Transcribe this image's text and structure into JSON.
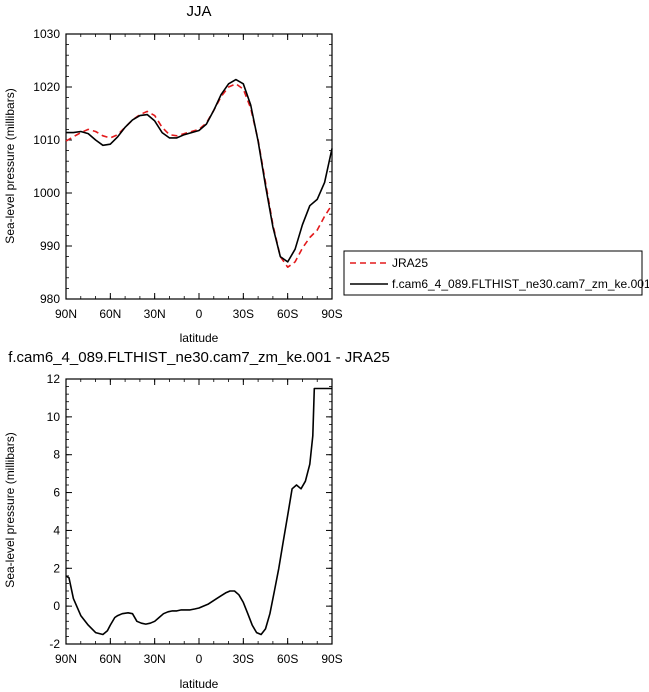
{
  "chart_data": [
    {
      "type": "line",
      "title": "JJA",
      "xlabel": "latitude",
      "ylabel": "Sea-level pressure (millibars)",
      "xlim": [
        90,
        -90
      ],
      "ylim": [
        980,
        1030
      ],
      "x_ticks": [
        90,
        60,
        30,
        0,
        -30,
        -60,
        -90
      ],
      "x_tick_labels": [
        "90N",
        "60N",
        "30N",
        "0",
        "30S",
        "60S",
        "90S"
      ],
      "y_ticks": [
        980,
        990,
        1000,
        1010,
        1020,
        1030
      ],
      "y_tick_labels": [
        "980",
        "990",
        "1000",
        "1010",
        "1020",
        "1030"
      ],
      "grid": false,
      "legend": "right",
      "series": [
        {
          "name": "JRA25",
          "color": "#e31a1c",
          "dash": "dashed",
          "x": [
            90,
            85,
            80,
            75,
            70,
            65,
            60,
            55,
            50,
            45,
            40,
            35,
            30,
            25,
            20,
            15,
            10,
            5,
            0,
            -5,
            -10,
            -15,
            -20,
            -25,
            -30,
            -35,
            -40,
            -45,
            -50,
            -55,
            -60,
            -65,
            -70,
            -75,
            -80,
            -85,
            -90
          ],
          "values": [
            1009.8,
            1010.6,
            1011.4,
            1012.0,
            1011.6,
            1010.8,
            1010.4,
            1011.0,
            1012.4,
            1013.8,
            1014.8,
            1015.4,
            1014.6,
            1012.4,
            1011.0,
            1010.8,
            1011.2,
            1011.6,
            1012.0,
            1013.2,
            1015.6,
            1018.2,
            1020.0,
            1020.6,
            1019.6,
            1016.0,
            1010.0,
            1002.0,
            994.0,
            988.0,
            986.0,
            987.0,
            989.6,
            991.6,
            993.0,
            995.6,
            997.8
          ]
        },
        {
          "name": "f.cam6_4_089.FLTHIST_ne30.cam7_zm_ke.001",
          "color": "#000000",
          "dash": "solid",
          "x": [
            90,
            85,
            80,
            75,
            70,
            65,
            60,
            55,
            50,
            45,
            40,
            35,
            30,
            25,
            20,
            15,
            10,
            5,
            0,
            -5,
            -10,
            -15,
            -20,
            -25,
            -30,
            -35,
            -40,
            -45,
            -50,
            -55,
            -60,
            -65,
            -70,
            -75,
            -80,
            -85,
            -90
          ],
          "values": [
            1011.4,
            1011.4,
            1011.6,
            1011.2,
            1010.0,
            1009.0,
            1009.2,
            1010.6,
            1012.4,
            1013.8,
            1014.6,
            1014.8,
            1013.6,
            1011.4,
            1010.4,
            1010.4,
            1011.0,
            1011.4,
            1011.8,
            1013.0,
            1015.6,
            1018.6,
            1020.6,
            1021.4,
            1020.6,
            1016.6,
            1009.8,
            1001.4,
            993.6,
            988.0,
            987.0,
            989.4,
            994.0,
            997.6,
            998.8,
            1002.0,
            1008.4
          ]
        }
      ]
    },
    {
      "type": "line",
      "title": "f.cam6_4_089.FLTHIST_ne30.cam7_zm_ke.001 - JRA25",
      "xlabel": "latitude",
      "ylabel": "Sea-level pressure (millibars)",
      "xlim": [
        90,
        -90
      ],
      "ylim": [
        -2,
        12
      ],
      "x_ticks": [
        90,
        60,
        30,
        0,
        -30,
        -60,
        -90
      ],
      "x_tick_labels": [
        "90N",
        "60N",
        "30N",
        "0",
        "30S",
        "60S",
        "90S"
      ],
      "y_ticks": [
        -2,
        0,
        2,
        4,
        6,
        8,
        10,
        12
      ],
      "y_tick_labels": [
        "-2",
        "0",
        "2",
        "4",
        "6",
        "8",
        "10",
        "12"
      ],
      "grid": false,
      "series": [
        {
          "color": "#000000",
          "dash": "solid",
          "x": [
            90,
            88,
            85,
            80,
            75,
            70,
            65,
            62,
            60,
            57,
            55,
            52,
            48,
            45,
            42,
            39,
            36,
            33,
            30,
            27,
            24,
            21,
            18,
            15,
            12,
            9,
            6,
            3,
            0,
            -3,
            -6,
            -9,
            -12,
            -15,
            -18,
            -21,
            -24,
            -27,
            -30,
            -33,
            -36,
            -39,
            -42,
            -45,
            -48,
            -51,
            -54,
            -57,
            -60,
            -63,
            -66,
            -69,
            -72,
            -75,
            -77,
            -78,
            -80,
            -82,
            -84,
            -86,
            -88,
            -90
          ],
          "values": [
            1.6,
            1.5,
            0.4,
            -0.5,
            -1.0,
            -1.4,
            -1.5,
            -1.3,
            -1.0,
            -0.6,
            -0.5,
            -0.4,
            -0.35,
            -0.4,
            -0.8,
            -0.9,
            -0.95,
            -0.9,
            -0.8,
            -0.6,
            -0.4,
            -0.3,
            -0.25,
            -0.25,
            -0.2,
            -0.2,
            -0.2,
            -0.15,
            -0.1,
            0.0,
            0.1,
            0.25,
            0.4,
            0.55,
            0.7,
            0.8,
            0.8,
            0.6,
            0.2,
            -0.4,
            -1.0,
            -1.4,
            -1.5,
            -1.2,
            -0.4,
            0.8,
            2.0,
            3.4,
            4.8,
            6.2,
            6.4,
            6.2,
            6.6,
            7.5,
            9.0,
            11.5,
            11.5,
            11.5,
            11.5,
            11.5,
            11.5,
            11.5
          ]
        }
      ]
    }
  ],
  "legend": {
    "entries": [
      "JRA25",
      "f.cam6_4_089.FLTHIST_ne30.cam7_zm_ke.001"
    ]
  }
}
